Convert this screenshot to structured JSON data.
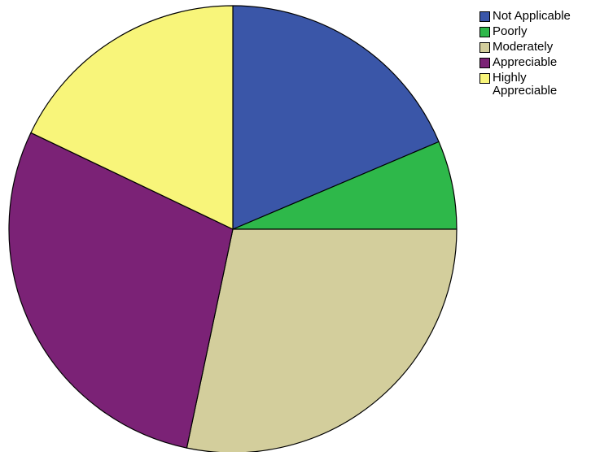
{
  "chart_data": {
    "type": "pie",
    "title": "",
    "categories": [
      "Not Applicable",
      "Poorly",
      "Moderately",
      "Appreciable",
      "Highly Appreciable"
    ],
    "series": [
      {
        "values": [
          18.6,
          6.4,
          28.3,
          28.8,
          17.9
        ]
      }
    ],
    "colors": [
      "#3A56A8",
      "#2EB84A",
      "#D3CE9C",
      "#7B2276",
      "#F8F57A"
    ],
    "legend_placement": "top-right",
    "start_angle_deg": 0,
    "direction": "clockwise"
  },
  "legend": {
    "items": [
      {
        "label": "Not Applicable",
        "color": "#3A56A8"
      },
      {
        "label": "Poorly",
        "color": "#2EB84A"
      },
      {
        "label": "Moderately",
        "color": "#D3CE9C"
      },
      {
        "label": "Appreciable",
        "color": "#7B2276"
      },
      {
        "label": "Highly\nAppreciable",
        "color": "#F8F57A"
      }
    ]
  }
}
